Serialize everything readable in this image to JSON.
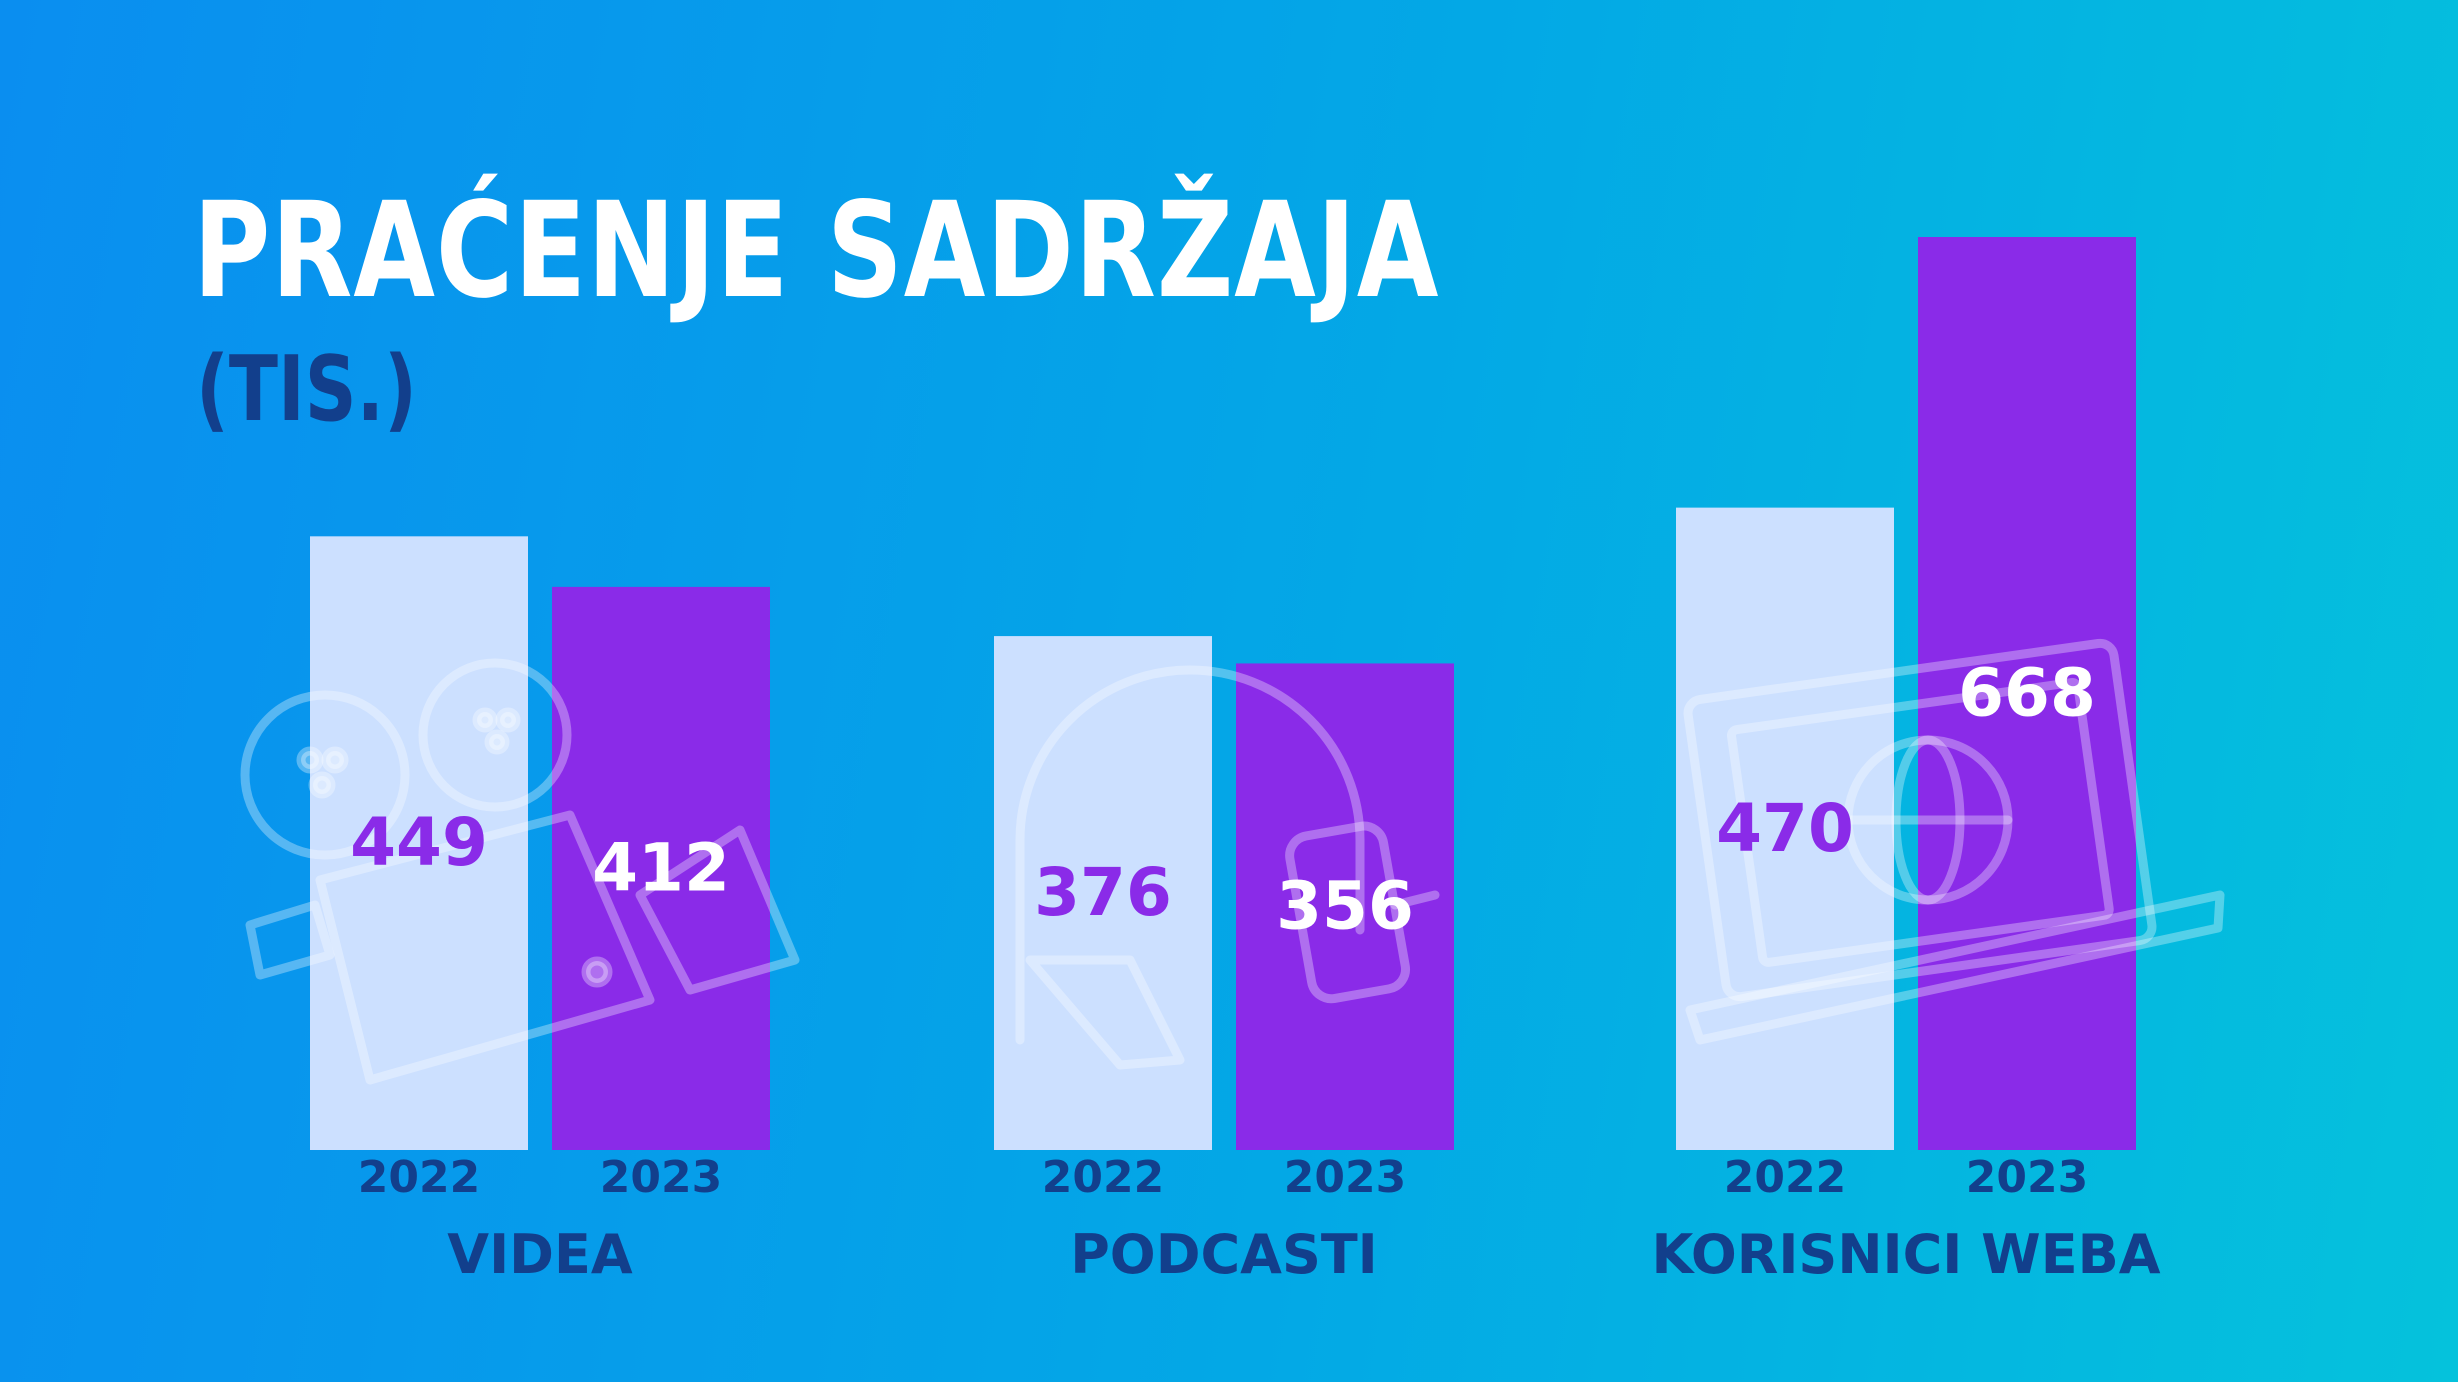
{
  "colors": {
    "bar_2022": "#cce0ff",
    "bar_2023": "#8a2be8",
    "label_dark": "#123f8c",
    "value_on_light": "#8a2be8",
    "value_on_dark": "#ffffff"
  },
  "icons": [
    "movie-camera-icon",
    "microphone-icon",
    "laptop-globe-icon"
  ],
  "chart_data": {
    "type": "bar",
    "title": "PRAĆENJE SADRŽAJA",
    "subtitle": "(TIS.)",
    "categories": [
      "VIDEA",
      "PODCASTI",
      "KORISNICI WEBA"
    ],
    "series": [
      {
        "name": "2022",
        "values": [
          449,
          376,
          470
        ]
      },
      {
        "name": "2023",
        "values": [
          412,
          356,
          668
        ]
      }
    ],
    "ylim": [
      0,
      668
    ],
    "grid": false,
    "legend": "none"
  }
}
